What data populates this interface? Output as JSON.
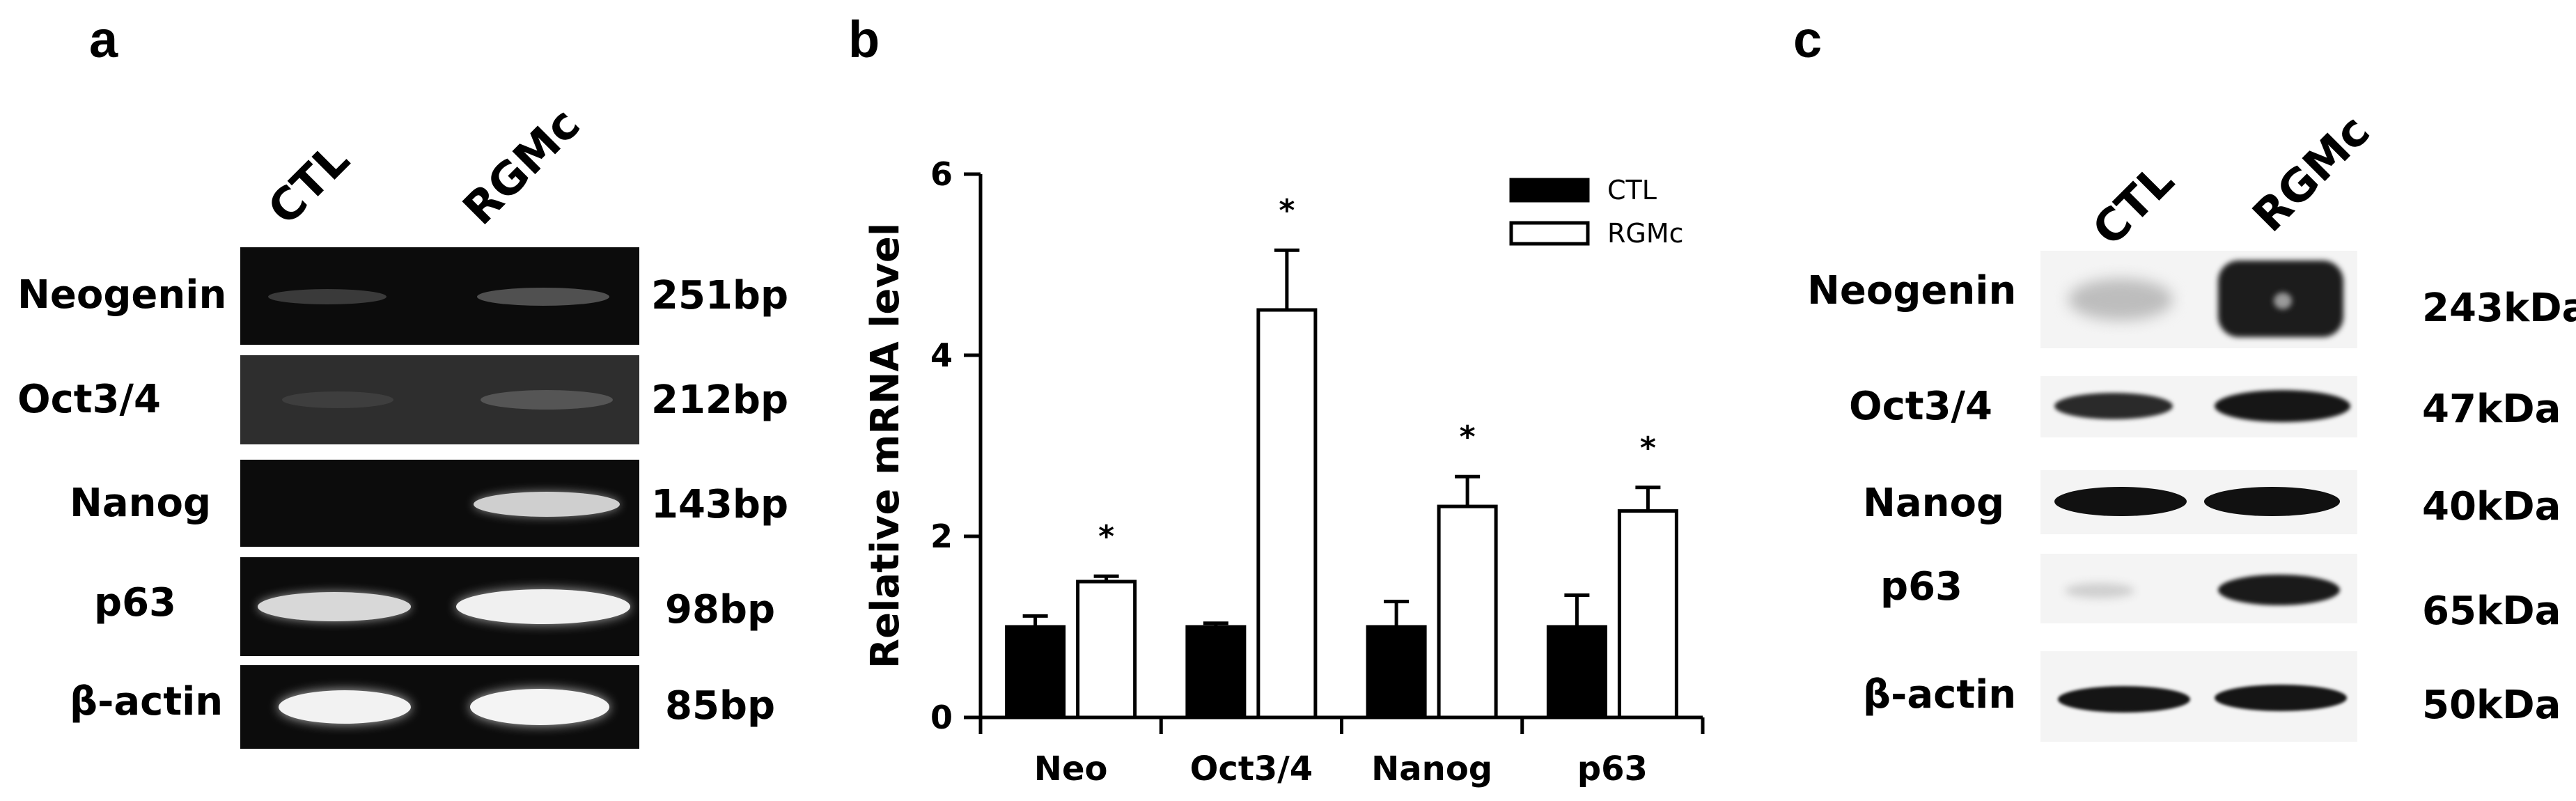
{
  "panels": {
    "a": {
      "letter": "a",
      "lanes": [
        "CTL",
        "RGMc"
      ],
      "rows": [
        {
          "gene": "Neogenin",
          "size": "251bp"
        },
        {
          "gene": "Oct3/4",
          "size": "212bp"
        },
        {
          "gene": "Nanog",
          "size": "143bp"
        },
        {
          "gene": "p63",
          "size": "98bp"
        },
        {
          "gene": "β-actin",
          "size": "85bp"
        }
      ]
    },
    "b": {
      "letter": "b"
    },
    "c": {
      "letter": "c",
      "lanes": [
        "CTL",
        "RGMc"
      ],
      "rows": [
        {
          "protein": "Neogenin",
          "size": "243kDa"
        },
        {
          "protein": "Oct3/4",
          "size": "47kDa"
        },
        {
          "protein": "Nanog",
          "size": "40kDa"
        },
        {
          "protein": "p63",
          "size": "65kDa"
        },
        {
          "protein": "β-actin",
          "size": "50kDa"
        }
      ]
    }
  },
  "chart_data": {
    "type": "bar",
    "title": "",
    "xlabel": "",
    "ylabel": "Relative mRNA level",
    "ylim": [
      0,
      6
    ],
    "yticks": [
      0,
      2,
      4,
      6
    ],
    "categories": [
      "Neo",
      "Oct3/4",
      "Nanog",
      "p63"
    ],
    "series": [
      {
        "name": "CTL",
        "fill": "#000000",
        "values": [
          1.0,
          1.0,
          1.0,
          1.0
        ],
        "errors": [
          0.12,
          0.04,
          0.28,
          0.35
        ],
        "significant": [
          false,
          false,
          false,
          false
        ]
      },
      {
        "name": "RGMc",
        "fill": "#ffffff",
        "values": [
          1.5,
          4.5,
          2.33,
          2.28
        ],
        "errors": [
          0.06,
          0.66,
          0.33,
          0.26
        ],
        "significant": [
          true,
          true,
          true,
          true
        ]
      }
    ],
    "significance_marker": "*",
    "legend_position": "top-right"
  },
  "colors": {
    "gel_bg": "#0c0c0c",
    "band": "#f2f2f2",
    "blot_bg": "#f4f4f4",
    "blot_band": "#1a1a1a"
  }
}
